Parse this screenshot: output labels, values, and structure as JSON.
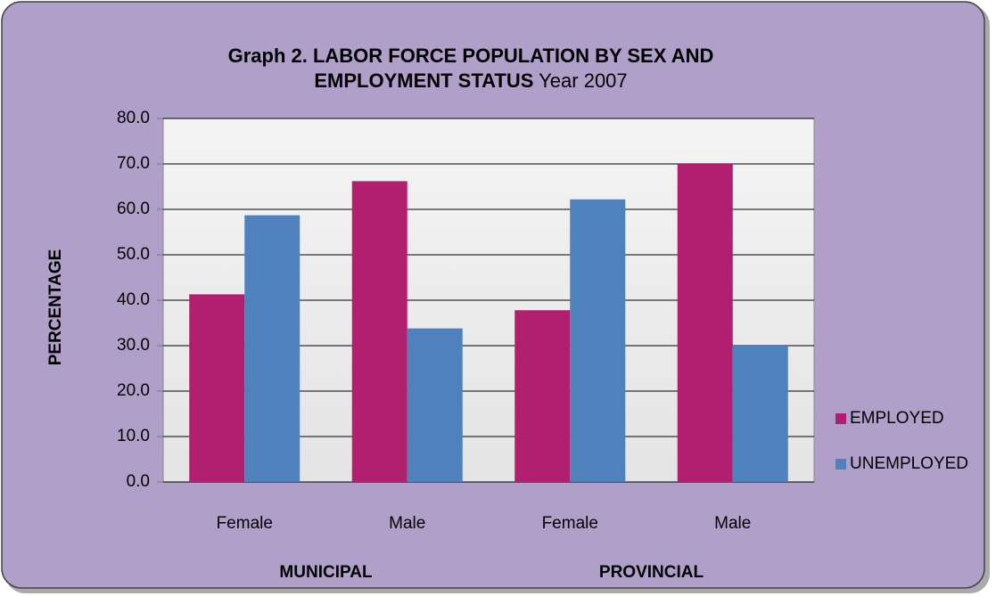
{
  "chart_data": {
    "type": "bar",
    "title": [
      "Graph 2. LABOR FORCE POPULATION BY SEX AND",
      "EMPLOYMENT STATUS"
    ],
    "subtitle": "Year  2007",
    "y_label": "PERCENTAGE",
    "categories": [
      "Female",
      "Male",
      "Female",
      "Male"
    ],
    "groups": [
      "MUNICIPAL",
      "PROVINCIAL"
    ],
    "series": [
      {
        "name": "EMPLOYED",
        "color": "#b0206e",
        "values": [
          41.3,
          66.2,
          37.8,
          70.0
        ]
      },
      {
        "name": "UNEMPLOYED",
        "color": "#4f81bd",
        "values": [
          58.7,
          33.8,
          62.2,
          30.0
        ]
      }
    ],
    "ylim": [
      0,
      80
    ],
    "yticks": [
      {
        "value": 0,
        "label": "0.0"
      },
      {
        "value": 10,
        "label": "10.0"
      },
      {
        "value": 20,
        "label": "20.0"
      },
      {
        "value": 30,
        "label": "30.0"
      },
      {
        "value": 40,
        "label": "40.0"
      },
      {
        "value": 50,
        "label": "50.0"
      },
      {
        "value": 60,
        "label": "60.0"
      },
      {
        "value": 70,
        "label": "70.0"
      },
      {
        "value": 80,
        "label": "80.0"
      }
    ],
    "grid": true,
    "legend": "right"
  }
}
